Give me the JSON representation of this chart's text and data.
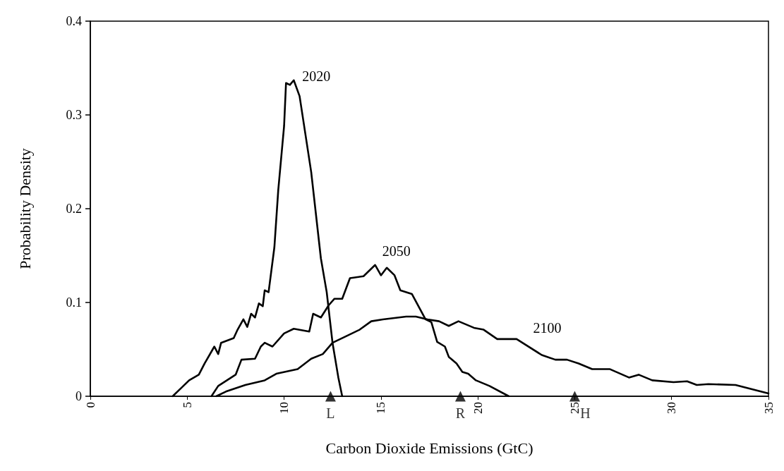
{
  "chart_data": {
    "type": "line",
    "xlabel": "Carbon Dioxide Emissions (GtC)",
    "ylabel": "Probability Density",
    "xlim": [
      0,
      35
    ],
    "xticks": [
      0,
      5,
      10,
      15,
      20,
      25,
      30,
      35
    ],
    "ylim": [
      0,
      0.4
    ],
    "yticks": [
      0,
      0.1,
      0.2,
      0.3,
      0.4
    ],
    "grid": false,
    "marker": "none",
    "line_style": "solid",
    "series": [
      {
        "name": "2020",
        "color": "#000000",
        "x": [
          4.25,
          5.1,
          5.6,
          5.9,
          6.4,
          6.6,
          6.75,
          7.4,
          7.6,
          7.9,
          8.1,
          8.3,
          8.5,
          8.7,
          8.9,
          9.0,
          9.2,
          9.5,
          9.7,
          10.0,
          10.1,
          10.3,
          10.5,
          10.8,
          11.4,
          11.9,
          12.2,
          12.5,
          12.8,
          13.0
        ],
        "values": [
          0,
          0.017,
          0.023,
          0.035,
          0.053,
          0.045,
          0.057,
          0.062,
          0.071,
          0.082,
          0.074,
          0.088,
          0.084,
          0.099,
          0.096,
          0.113,
          0.111,
          0.159,
          0.22,
          0.288,
          0.334,
          0.332,
          0.337,
          0.32,
          0.239,
          0.147,
          0.111,
          0.057,
          0.02,
          0
        ]
      },
      {
        "name": "2050",
        "color": "#000000",
        "x": [
          6.25,
          6.6,
          7.5,
          7.8,
          8.5,
          8.8,
          9.0,
          9.4,
          10.0,
          10.5,
          11.3,
          11.5,
          11.9,
          12.3,
          12.6,
          13.0,
          13.4,
          14.1,
          14.7,
          15.0,
          15.3,
          15.7,
          16.0,
          16.6,
          17.3,
          17.6,
          17.9,
          18.3,
          18.5,
          18.9,
          19.2,
          19.5,
          19.9,
          20.6,
          21.6
        ],
        "values": [
          0,
          0.011,
          0.023,
          0.039,
          0.04,
          0.053,
          0.057,
          0.053,
          0.067,
          0.072,
          0.069,
          0.088,
          0.084,
          0.097,
          0.104,
          0.104,
          0.126,
          0.128,
          0.14,
          0.129,
          0.137,
          0.129,
          0.113,
          0.109,
          0.082,
          0.079,
          0.058,
          0.053,
          0.042,
          0.035,
          0.026,
          0.024,
          0.017,
          0.011,
          0
        ]
      },
      {
        "name": "2100",
        "color": "#000000",
        "x": [
          6.5,
          7.0,
          8.0,
          9.0,
          9.6,
          10.7,
          11.4,
          12.0,
          12.5,
          13.2,
          13.9,
          14.5,
          15.1,
          16.3,
          16.8,
          17.4,
          18.0,
          18.5,
          19.0,
          19.8,
          20.3,
          21.0,
          22.0,
          23.3,
          24.0,
          24.6,
          25.2,
          25.9,
          26.8,
          27.8,
          28.3,
          29.0,
          30.1,
          30.8,
          31.3,
          31.9,
          33.3,
          35.0
        ],
        "values": [
          0,
          0.005,
          0.012,
          0.017,
          0.024,
          0.029,
          0.04,
          0.045,
          0.057,
          0.064,
          0.071,
          0.08,
          0.082,
          0.085,
          0.085,
          0.082,
          0.08,
          0.075,
          0.08,
          0.073,
          0.071,
          0.061,
          0.061,
          0.044,
          0.039,
          0.039,
          0.035,
          0.029,
          0.029,
          0.02,
          0.023,
          0.017,
          0.015,
          0.016,
          0.012,
          0.013,
          0.012,
          0.003
        ]
      },
      {
        "type": "scatter",
        "marker": "triangle",
        "color": "#000000",
        "x": [
          12.4,
          19.1,
          25.0
        ],
        "values": [
          0,
          0,
          0
        ],
        "value_labels": [
          "L",
          "R",
          "H"
        ]
      }
    ]
  }
}
